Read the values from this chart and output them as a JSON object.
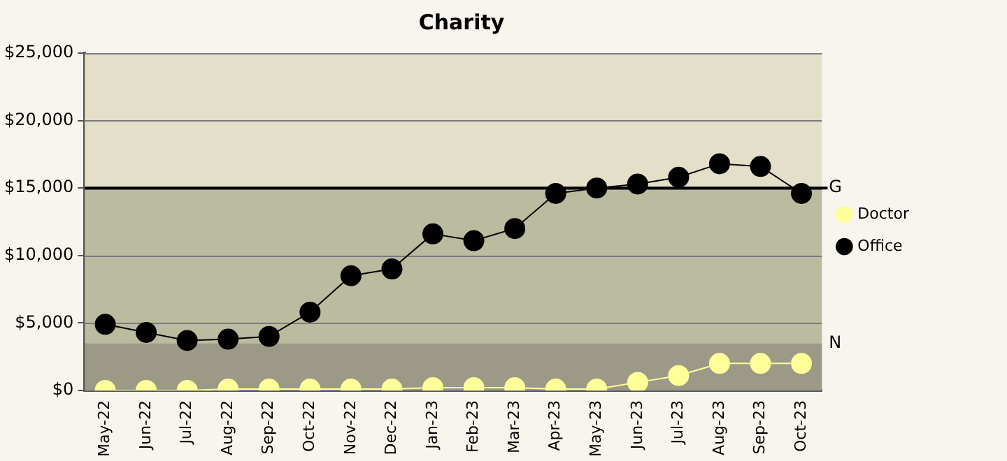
{
  "chart_data": {
    "type": "line",
    "title": "Charity",
    "categories": [
      "May-22",
      "Jun-22",
      "Jul-22",
      "Aug-22",
      "Sep-22",
      "Oct-22",
      "Nov-22",
      "Dec-22",
      "Jan-23",
      "Feb-23",
      "Mar-23",
      "Apr-23",
      "May-23",
      "Jun-23",
      "Jul-23",
      "Aug-23",
      "Sep-23",
      "Oct-23"
    ],
    "series": [
      {
        "name": "Doctor",
        "color": "#ffff99",
        "values": [
          0,
          0,
          0,
          100,
          100,
          100,
          100,
          100,
          200,
          200,
          200,
          100,
          100,
          600,
          1100,
          2000,
          2000,
          2000
        ]
      },
      {
        "name": "Office",
        "color": "#000000",
        "values": [
          4900,
          4300,
          3700,
          3800,
          4000,
          5800,
          8500,
          9000,
          11600,
          11100,
          12000,
          14600,
          15000,
          15300,
          15800,
          16800,
          16600,
          14600
        ]
      }
    ],
    "ylim": [
      0,
      25000
    ],
    "yticks": [
      {
        "value": 0,
        "label": "$0"
      },
      {
        "value": 5000,
        "label": "$5,000"
      },
      {
        "value": 10000,
        "label": "$10,000"
      },
      {
        "value": 15000,
        "label": "$15,000"
      },
      {
        "value": 20000,
        "label": "$20,000"
      },
      {
        "value": 25000,
        "label": "$25,000"
      }
    ],
    "bands": [
      {
        "axis": "y",
        "from": 0,
        "to": 3500,
        "label": "N",
        "color": "#9c9a86"
      },
      {
        "axis": "y",
        "from": 3500,
        "to": 15000,
        "color": "#bbbb9f"
      },
      {
        "axis": "y",
        "from": 15000,
        "to": 25000,
        "color": "#e3dfc8"
      }
    ],
    "ref_lines": [
      {
        "axis": "y",
        "value": 15000,
        "label": "G",
        "color": "#000000",
        "line_style": "solid"
      }
    ],
    "grid": "y",
    "legend": "right",
    "marker": "circle",
    "line_style": "solid"
  }
}
